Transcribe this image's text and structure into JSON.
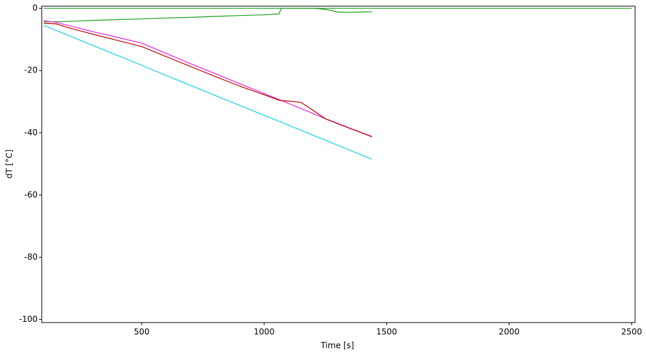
{
  "chart_data": {
    "type": "line",
    "x_label": "Time [s]",
    "y_label": "dT [°C]",
    "x": [
      100,
      150,
      200,
      300,
      400,
      500,
      600,
      700,
      800,
      900,
      1000,
      1060,
      1070,
      1100,
      1150,
      1200,
      1250,
      1300,
      1350,
      1400,
      1440,
      2500
    ],
    "series": [
      {
        "color": "#1a9e1a",
        "values": [
          -4.3,
          -4.3,
          -4.2,
          -3.9,
          -3.6,
          -3.4,
          -3.1,
          -2.9,
          -2.6,
          -2.3,
          -2.1,
          -1.8,
          0,
          0,
          0,
          0,
          -0.3,
          -1.2,
          -1.3,
          -1.2,
          -1.1,
          null
        ]
      },
      {
        "color": "#1a9e1a",
        "values": [
          0,
          0,
          0,
          0,
          0,
          0,
          0,
          0,
          0,
          0,
          0,
          0,
          0,
          0,
          0,
          0,
          0,
          0,
          0,
          0,
          0,
          0
        ]
      },
      {
        "color": "#e020e0",
        "values": [
          -4,
          -4.5,
          -5.5,
          -7.5,
          -9.3,
          -11.2,
          -14.5,
          -17.8,
          -21,
          -24.2,
          -27.4,
          -29.3,
          -29.6,
          -30.6,
          -32.2,
          -33.8,
          -35.5,
          -37,
          -38.5,
          -40,
          -41.2,
          null
        ]
      },
      {
        "color": "#c00000",
        "values": [
          -4.8,
          -5,
          -6.2,
          -8.3,
          -10.3,
          -12.3,
          -15.5,
          -18.7,
          -21.9,
          -25,
          -27.8,
          -29.5,
          -29.7,
          -29.8,
          -30.2,
          -32.8,
          -35.5,
          -37.1,
          -38.6,
          -40.1,
          -41.3,
          null
        ]
      },
      {
        "color": "#10d0e0",
        "values": [
          -5.5,
          -7.1,
          -8.7,
          -11.9,
          -15.1,
          -18.3,
          -21.6,
          -24.8,
          -28,
          -31.2,
          -34.4,
          -36.3,
          -36.6,
          -37.6,
          -39.2,
          -40.8,
          -42.4,
          -44,
          -45.6,
          -47.2,
          -48.5,
          null
        ]
      }
    ],
    "xlim": [
      92,
      2514
    ],
    "xticks": [
      500,
      1000,
      1500,
      2000,
      2500
    ],
    "ylim": [
      -101,
      0.7
    ],
    "yticks": [
      -100,
      -80,
      -60,
      -40,
      -20,
      0
    ],
    "y_tick_color": "#1a9e1a",
    "y_label_color": "#1a9e1a"
  }
}
